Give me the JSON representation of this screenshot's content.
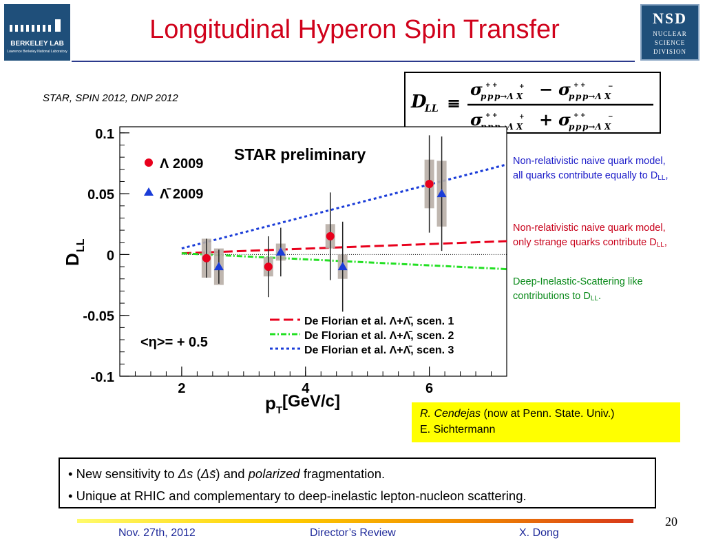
{
  "title": "Longitudinal Hyperon Spin Transfer",
  "subtitle": "STAR, SPIN 2012, DNP 2012",
  "logos": {
    "left_line1": "BERKELEY LAB",
    "left_line2": "Lawrence Berkeley National Laboratory",
    "right_abbr": "NSD",
    "right_lines": [
      "NUCLEAR",
      "SCIENCE",
      "DIVISION"
    ]
  },
  "formula": {
    "lhs": "D",
    "lhs_sub": "LL",
    "equiv": "≡",
    "num_a": "σ",
    "num_b": "σ",
    "op_minus": "−",
    "op_plus": "+",
    "proc_plus": "p→Λ X",
    "proc_minus": "p→Λ X"
  },
  "chart_data": {
    "type": "scatter",
    "title": "STAR preliminary",
    "xlabel": "p",
    "xlabel_sub": "T",
    "xlabel_unit": " [GeV/c]",
    "ylabel": "D",
    "ylabel_sub": "LL",
    "xlim": [
      1.0,
      7.25
    ],
    "ylim": [
      -0.1,
      0.105
    ],
    "xticks": [
      2,
      4,
      6
    ],
    "xtick_labels": [
      "2",
      "4",
      "6"
    ],
    "yticks": [
      0.1,
      0.05,
      0,
      -0.05,
      -0.1
    ],
    "ytick_labels": [
      "0.1",
      "0.05",
      "0",
      "-0.05",
      "-0.1"
    ],
    "eta_label": "<η>= + 0.5",
    "zero_line": true,
    "series": [
      {
        "name": "Λ 2009",
        "marker": "circle",
        "color": "#e8001c",
        "points": [
          {
            "x": 2.4,
            "y": -0.003,
            "stat": 0.016,
            "sys": 0.016
          },
          {
            "x": 3.4,
            "y": -0.01,
            "stat": 0.025,
            "sys": 0.008
          },
          {
            "x": 4.4,
            "y": 0.015,
            "stat": 0.036,
            "sys": 0.01
          },
          {
            "x": 6.0,
            "y": 0.058,
            "stat": 0.04,
            "sys": 0.02
          }
        ]
      },
      {
        "name": "Λ̄ 2009",
        "marker": "triangle",
        "color": "#1a3cd8",
        "points": [
          {
            "x": 2.6,
            "y": -0.01,
            "stat": 0.014,
            "sys": 0.015
          },
          {
            "x": 3.6,
            "y": 0.002,
            "stat": 0.02,
            "sys": 0.007
          },
          {
            "x": 4.6,
            "y": -0.01,
            "stat": 0.037,
            "sys": 0.01
          },
          {
            "x": 6.2,
            "y": 0.05,
            "stat": 0.047,
            "sys": 0.027
          }
        ]
      }
    ],
    "curves": [
      {
        "name": "De Florian et al. Λ+Λ̄, scen. 1",
        "style": "dashed-long",
        "color": "#e8001c",
        "x": [
          2,
          7.25
        ],
        "y": [
          0.001,
          0.011
        ]
      },
      {
        "name": "De Florian et al. Λ+Λ̄, scen. 2",
        "style": "dash-dot",
        "color": "#22e022",
        "x": [
          2,
          7.25
        ],
        "y": [
          0.001,
          -0.012
        ]
      },
      {
        "name": "De Florian et al. Λ+Λ̄, scen. 3",
        "style": "dotted",
        "color": "#1a3cd8",
        "x": [
          2,
          7.25
        ],
        "y": [
          0.005,
          0.074
        ]
      }
    ],
    "legend_placement": "top-left (markers), bottom-right (curves)"
  },
  "notes": {
    "n1_text": "Non-relativistic naive quark model, all quarks contribute equally to D",
    "n1_sub": "LL",
    "n1_end": ",",
    "n2_text": "Non-relativistic naive quark model, only strange quarks contribute D",
    "n2_sub": "LL",
    "n2_end": ",",
    "n3_text": "Deep-Inelastic-Scattering like contributions to D",
    "n3_sub": "LL",
    "n3_end": ".",
    "colors": {
      "n1": "#1a1ac8",
      "n2": "#c8001a",
      "n3": "#0a8a1a"
    }
  },
  "credit": {
    "name": "R. Cendejas",
    "affil": " (now at Penn. State. Univ.)",
    "line2": "E. Sichtermann"
  },
  "bullets": {
    "b1_pre": "• New sensitivity to ",
    "b1_ds": "Δs",
    "b1_open": " (",
    "b1_dsbar": "Δs̄",
    "b1_close": ") and ",
    "b1_pol": "polarized",
    "b1_post": " fragmentation.",
    "b2": "• Unique at RHIC and complementary to deep-inelastic lepton-nucleon scattering."
  },
  "footer": {
    "page": "20",
    "date": "Nov. 27th, 2012",
    "event": "Director’s Review",
    "author": "X. Dong"
  }
}
